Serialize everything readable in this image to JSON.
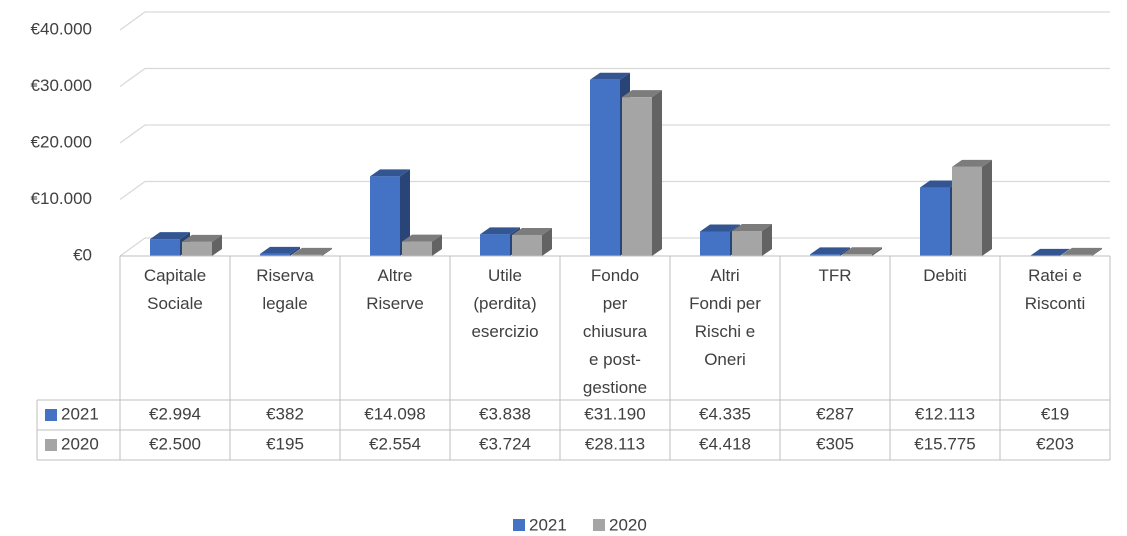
{
  "chart_data": {
    "type": "bar3d",
    "categories": [
      "Capitale Sociale",
      "Riserva legale",
      "Altre Riserve",
      "Utile (perdita) esercizio",
      "Fondo per chiusura e post-gestione",
      "Altri Fondi per Rischi e Oneri",
      "TFR",
      "Debiti",
      "Ratei e Risconti"
    ],
    "series": [
      {
        "name": "2021",
        "color": "#4472c4",
        "values": [
          2994,
          382,
          14098,
          3838,
          31190,
          4335,
          287,
          12113,
          19
        ],
        "value_labels": [
          "€2.994",
          "€382",
          "€14.098",
          "€3.838",
          "€31.190",
          "€4.335",
          "€287",
          "€12.113",
          "€19"
        ]
      },
      {
        "name": "2020",
        "color": "#a5a5a5",
        "values": [
          2500,
          195,
          2554,
          3724,
          28113,
          4418,
          305,
          15775,
          203
        ],
        "value_labels": [
          "€2.500",
          "€195",
          "€2.554",
          "€3.724",
          "€28.113",
          "€4.418",
          "€305",
          "€15.775",
          "€203"
        ]
      }
    ],
    "ylim": [
      0,
      40000
    ],
    "yticks": [
      {
        "value": 0,
        "label": "€0"
      },
      {
        "value": 10000,
        "label": "€10.000"
      },
      {
        "value": 20000,
        "label": "€20.000"
      },
      {
        "value": 30000,
        "label": "€30.000"
      },
      {
        "value": 40000,
        "label": "€40.000"
      }
    ],
    "grid": true,
    "data_table": true,
    "legend": "bottom"
  }
}
